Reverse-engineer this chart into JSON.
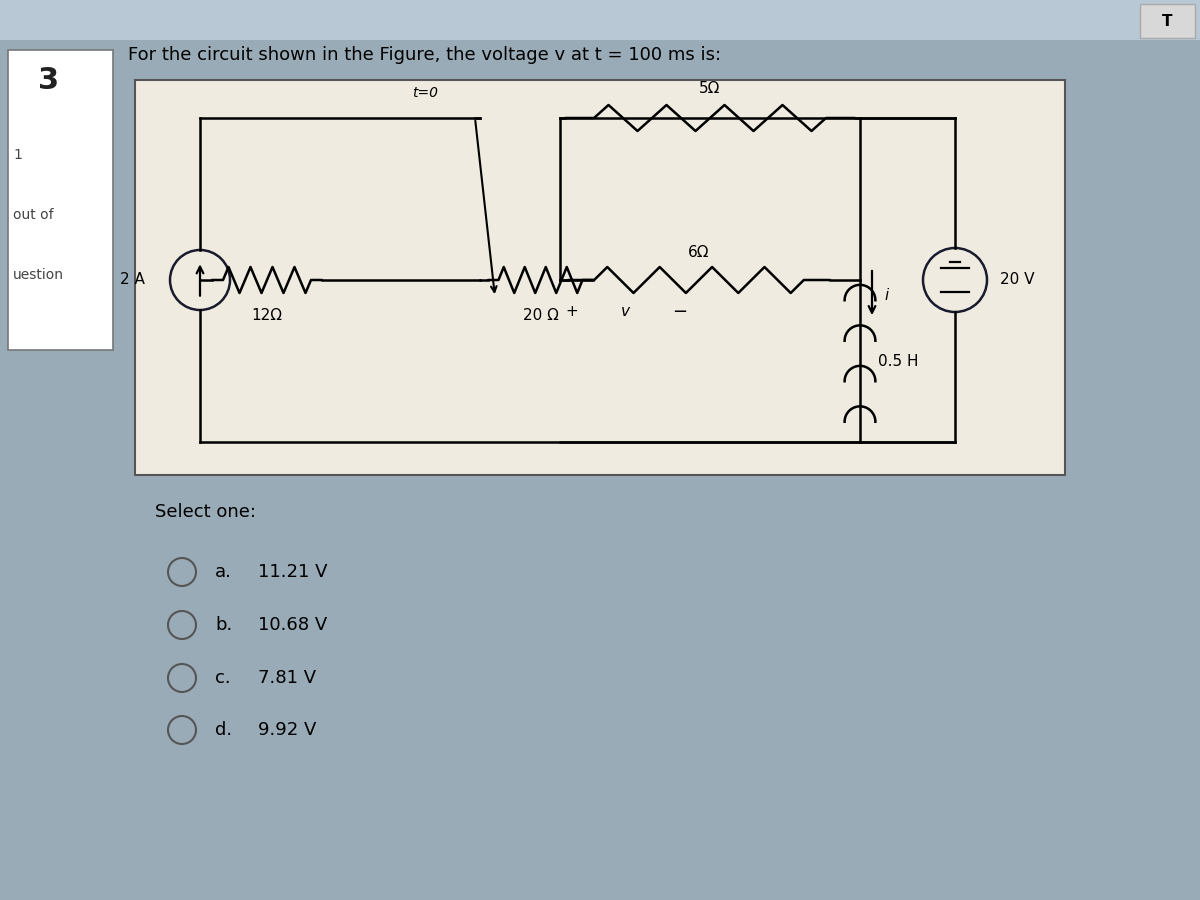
{
  "title": "For the circuit shown in the Figure, the voltage v at t = 100 ms is:",
  "question_number": "3",
  "side_label_1": "1",
  "side_label_2": "out of",
  "side_label_3": "uestion",
  "bg_color": "#a8b8c8",
  "circuit_bg": "#f0ebe0",
  "circuit_border": "#555555",
  "options": [
    {
      "label": "a.",
      "value": "11.21 V"
    },
    {
      "label": "b.",
      "value": "10.68 V"
    },
    {
      "label": "c.",
      "value": "7.81 V"
    },
    {
      "label": "d.",
      "value": "9.92 V"
    }
  ],
  "select_one_text": "Select one:",
  "r1_label": "12Ω",
  "r2_label": "20 Ω",
  "r3_label": "5Ω",
  "r4_label": "6Ω",
  "inductor_label": "0.5 H",
  "cs_label": "2 A",
  "vs_label": "20 V",
  "switch_label": "t=0",
  "v_label": "v",
  "i_label": "i",
  "title_fontsize": 13,
  "options_fontsize": 13,
  "outer_bg": "#9aabb8"
}
